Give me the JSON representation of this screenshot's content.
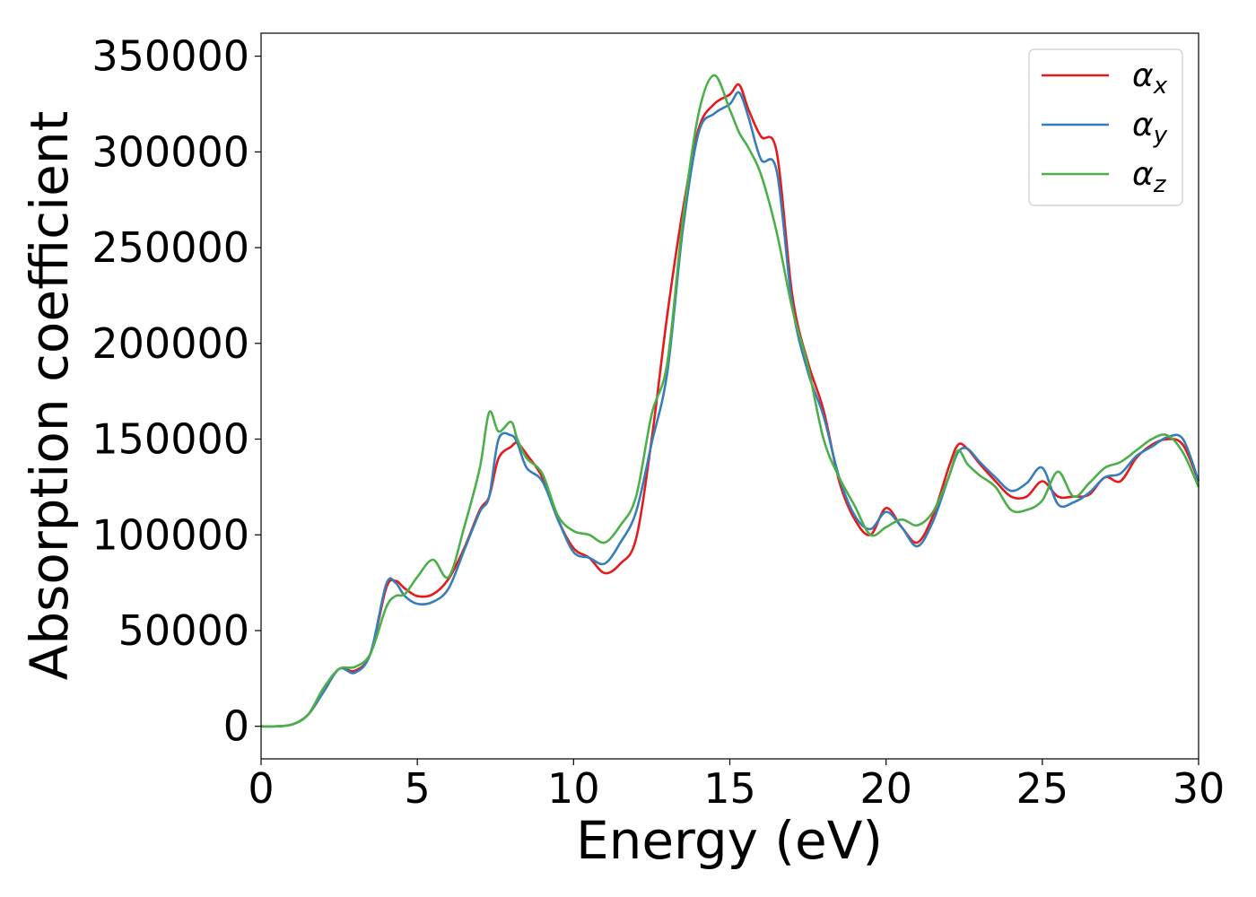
{
  "chart_data": {
    "type": "line",
    "title": "",
    "xlabel": "Energy (eV)",
    "ylabel": "Absorption coefficient",
    "xlim": [
      0,
      30
    ],
    "ylim": [
      -17000,
      362000
    ],
    "x_ticks": [
      0,
      5,
      10,
      15,
      20,
      25,
      30
    ],
    "y_ticks": [
      0,
      50000,
      100000,
      150000,
      200000,
      250000,
      300000,
      350000
    ],
    "grid": false,
    "legend_position": "top-right",
    "x": [
      0,
      0.5,
      1,
      1.5,
      2,
      2.5,
      3,
      3.5,
      4,
      4.3,
      4.6,
      5,
      5.5,
      6,
      6.5,
      7,
      7.3,
      7.6,
      8,
      8.2,
      8.5,
      9,
      9.5,
      10,
      10.5,
      11,
      11.5,
      12,
      12.5,
      13,
      13.5,
      14,
      14.5,
      15,
      15.3,
      15.6,
      16,
      16.5,
      17,
      17.5,
      18,
      18.5,
      19,
      19.5,
      20,
      20.5,
      21,
      21.5,
      22,
      22.3,
      22.6,
      23,
      23.5,
      24,
      24.5,
      25,
      25.5,
      26,
      26.5,
      27,
      27.5,
      28,
      28.5,
      29,
      29.5,
      30
    ],
    "series": [
      {
        "name": "α_x",
        "legend_main": "α",
        "legend_sub": "x",
        "color": "#e41a1c",
        "values": [
          0,
          0,
          1000,
          6000,
          18000,
          30000,
          29000,
          38000,
          72000,
          76000,
          72000,
          68000,
          69000,
          77000,
          93000,
          113000,
          120000,
          140000,
          146000,
          148000,
          142000,
          130000,
          108000,
          93000,
          88000,
          80000,
          85000,
          98000,
          150000,
          215000,
          270000,
          312000,
          325000,
          330000,
          335000,
          322000,
          308000,
          300000,
          225000,
          190000,
          165000,
          128000,
          108000,
          100000,
          114000,
          104000,
          96000,
          110000,
          135000,
          147000,
          145000,
          137000,
          128000,
          120000,
          120000,
          128000,
          120000,
          120000,
          121000,
          130000,
          128000,
          140000,
          147000,
          150000,
          147000,
          128000
        ]
      },
      {
        "name": "α_y",
        "legend_main": "α",
        "legend_sub": "y",
        "color": "#377eb8",
        "values": [
          0,
          0,
          1000,
          6000,
          18000,
          30000,
          28000,
          38000,
          74000,
          75000,
          68000,
          64000,
          65000,
          72000,
          92000,
          112000,
          120000,
          150000,
          152000,
          148000,
          135000,
          128000,
          108000,
          91000,
          88000,
          85000,
          96000,
          112000,
          148000,
          185000,
          260000,
          310000,
          320000,
          325000,
          331000,
          318000,
          296000,
          290000,
          220000,
          185000,
          162000,
          130000,
          110000,
          103000,
          112000,
          104000,
          94000,
          107000,
          130000,
          143000,
          145000,
          138000,
          130000,
          123000,
          127000,
          135000,
          116000,
          117000,
          122000,
          130000,
          132000,
          141000,
          146000,
          151000,
          150000,
          128000
        ]
      },
      {
        "name": "α_z",
        "legend_main": "α",
        "legend_sub": "z",
        "color": "#4daf4a",
        "values": [
          0,
          0,
          1000,
          6000,
          20000,
          30000,
          31000,
          38000,
          62000,
          68000,
          69000,
          78000,
          87000,
          78000,
          104000,
          135000,
          164000,
          154000,
          159000,
          150000,
          140000,
          132000,
          110000,
          102000,
          100000,
          96000,
          105000,
          120000,
          163000,
          190000,
          265000,
          320000,
          340000,
          322000,
          310000,
          302000,
          288000,
          258000,
          218000,
          188000,
          150000,
          130000,
          115000,
          100000,
          104000,
          108000,
          105000,
          112000,
          130000,
          144000,
          137000,
          131000,
          125000,
          113000,
          113000,
          118000,
          133000,
          120000,
          127000,
          135000,
          138000,
          144000,
          150000,
          152000,
          143000,
          125000
        ]
      }
    ]
  }
}
